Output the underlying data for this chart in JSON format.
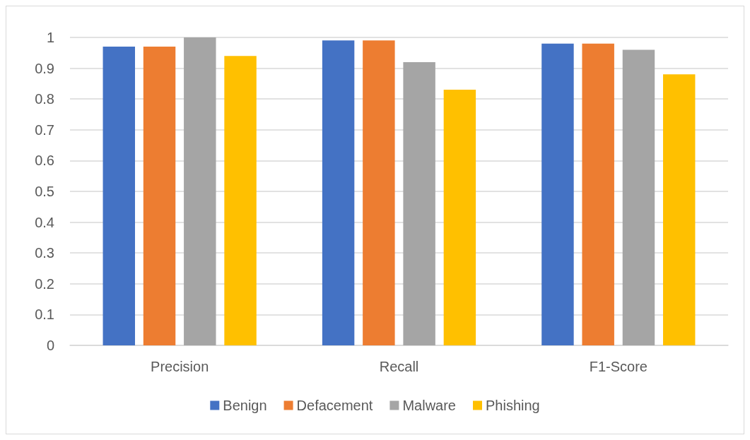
{
  "chart_data": {
    "type": "bar",
    "categories": [
      "Precision",
      "Recall",
      "F1-Score"
    ],
    "series": [
      {
        "name": "Benign",
        "color": "#4472c4",
        "values": [
          0.97,
          0.99,
          0.98
        ]
      },
      {
        "name": "Defacement",
        "color": "#ed7d31",
        "values": [
          0.97,
          0.99,
          0.98
        ]
      },
      {
        "name": "Malware",
        "color": "#a5a5a5",
        "values": [
          1.0,
          0.92,
          0.96
        ]
      },
      {
        "name": "Phishing",
        "color": "#ffc000",
        "values": [
          0.94,
          0.83,
          0.88
        ]
      }
    ],
    "ylim": [
      0,
      1
    ],
    "yticks": [
      0,
      0.1,
      0.2,
      0.3,
      0.4,
      0.5,
      0.6,
      0.7,
      0.8,
      0.9,
      1
    ],
    "grid": "y",
    "legend": "bottom"
  }
}
